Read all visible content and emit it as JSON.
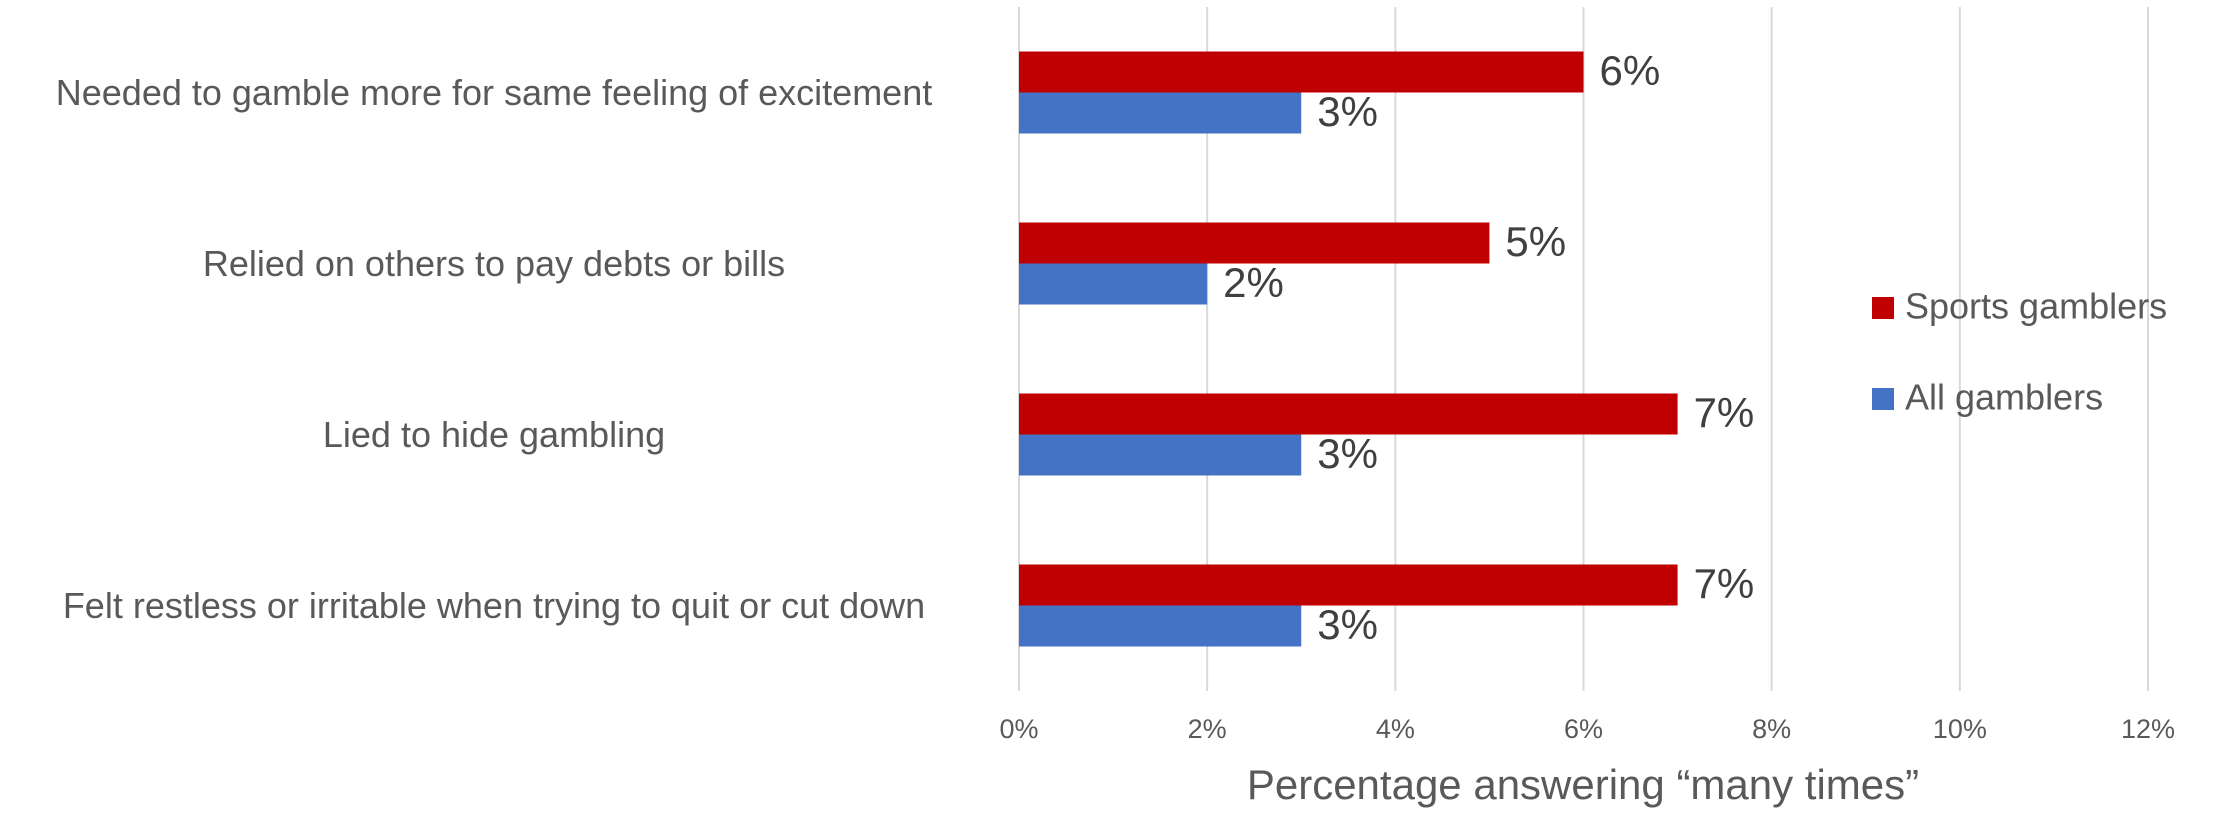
{
  "chart_data": {
    "type": "hbar",
    "categories": [
      "Needed to gamble more for same feeling of excitement",
      "Relied on others to pay debts or bills",
      "Lied to hide gambling",
      "Felt restless or irritable when trying to quit or cut down"
    ],
    "series": [
      {
        "name": "Sports gamblers",
        "color": "#c00000",
        "values": [
          6,
          5,
          7,
          7
        ],
        "value_labels": [
          "6%",
          "5%",
          "7%",
          "7%"
        ]
      },
      {
        "name": "All gamblers",
        "color": "#4472c4",
        "values": [
          3,
          2,
          3,
          3
        ],
        "value_labels": [
          "3%",
          "2%",
          "3%",
          "3%"
        ]
      }
    ],
    "x_label": "Percentage answering “many times”",
    "xlim": [
      0,
      12
    ],
    "xticks": [
      {
        "value": 0,
        "label": "0%"
      },
      {
        "value": 2,
        "label": "2%"
      },
      {
        "value": 4,
        "label": "4%"
      },
      {
        "value": 6,
        "label": "6%"
      },
      {
        "value": 8,
        "label": "8%"
      },
      {
        "value": 10,
        "label": "10%"
      },
      {
        "value": 12,
        "label": "12%"
      }
    ],
    "grid": true,
    "legend": "right"
  }
}
